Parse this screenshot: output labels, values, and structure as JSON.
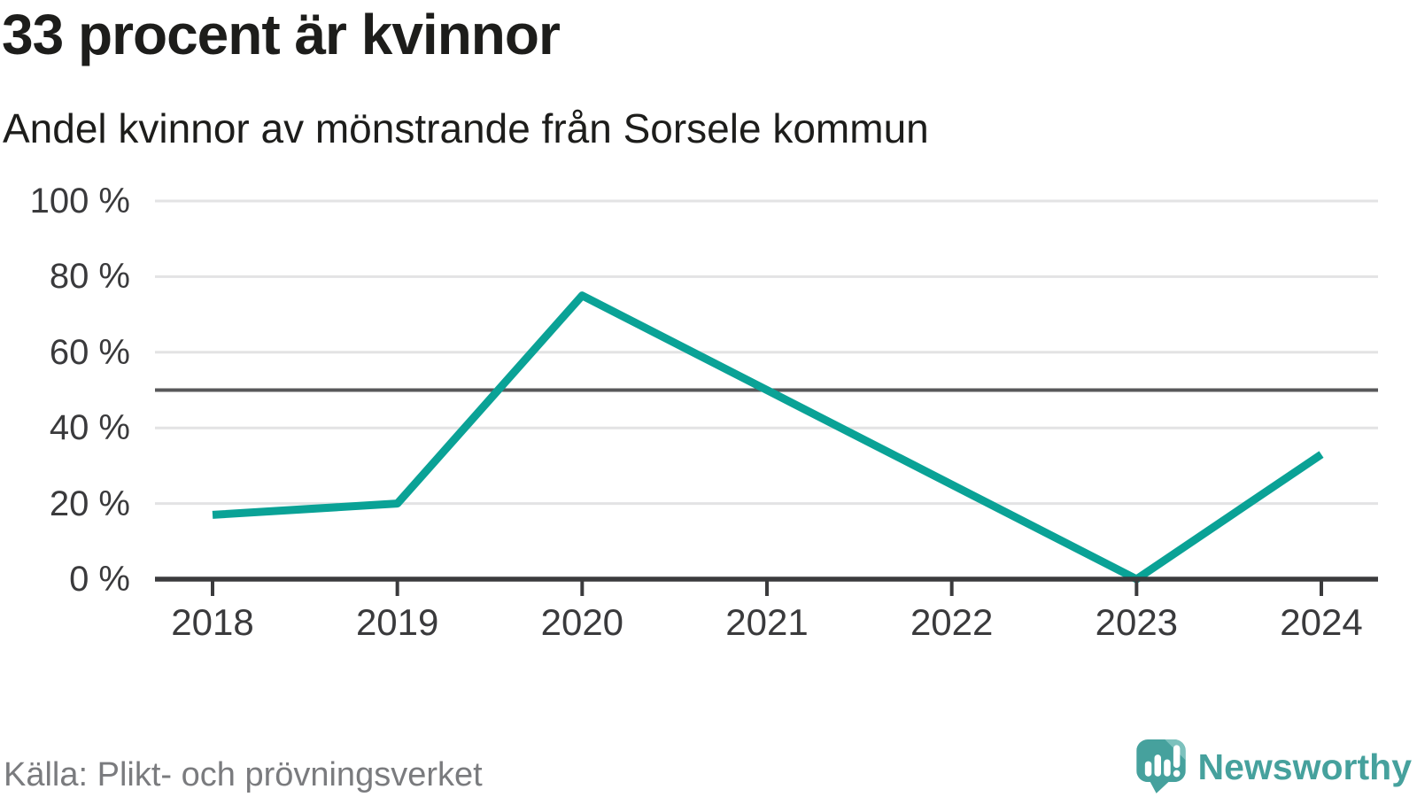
{
  "header": {
    "title": "33 procent är kvinnor",
    "subtitle": "Andel kvinnor av mönstrande från Sorsele kommun"
  },
  "chart_data": {
    "type": "line",
    "title": "33 procent är kvinnor",
    "subtitle": "Andel kvinnor av mönstrande från Sorsele kommun",
    "x": [
      "2018",
      "2019",
      "2020",
      "2021",
      "2022",
      "2023",
      "2024"
    ],
    "series": [
      {
        "name": "Andel kvinnor av mönstrande",
        "values": [
          17,
          20,
          75,
          50,
          25,
          0,
          33
        ]
      }
    ],
    "unit": "%",
    "ylim": [
      0,
      100
    ],
    "yticks": [
      {
        "value": 0,
        "label": "0 %"
      },
      {
        "value": 20,
        "label": "20 %"
      },
      {
        "value": 40,
        "label": "40 %"
      },
      {
        "value": 60,
        "label": "60 %"
      },
      {
        "value": 80,
        "label": "80 %"
      },
      {
        "value": 100,
        "label": "100 %"
      }
    ],
    "reference_line": {
      "value": 50
    },
    "grid": "horizontal",
    "legend": "none",
    "colors": {
      "line": "#0aa296",
      "axis": "#3b3b3d",
      "grid": "#e3e3e4",
      "reference": "#58585a",
      "tick_text": "#3a3a3c"
    }
  },
  "footer": {
    "source": "Källa: Plikt- och prövningsverket",
    "brand": {
      "name": "Newsworthy",
      "icon": "newsworthy-speech-bubble-bar-chart-icon",
      "color": "#46a19d",
      "icon_highlight": "#7cc1bd"
    }
  }
}
